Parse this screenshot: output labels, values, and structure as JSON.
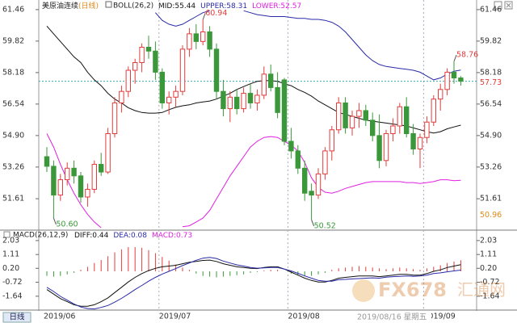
{
  "chart_data": [
    {
      "type": "candlestick",
      "title": "美原油连续",
      "period": "(日线)",
      "indicator": "BOLL(26,2)",
      "categories": [
        "2019/06",
        null,
        null,
        null,
        null,
        null,
        null,
        null,
        null,
        null,
        null,
        null,
        null,
        null,
        null,
        null,
        null,
        "2019/07",
        null,
        null,
        null,
        null,
        null,
        null,
        null,
        null,
        null,
        null,
        null,
        null,
        null,
        null,
        null,
        null,
        null,
        null,
        "2019/08",
        null,
        null,
        null,
        null,
        null,
        null,
        null,
        null,
        null,
        null,
        null,
        null,
        null,
        null,
        null,
        null,
        null,
        null,
        null,
        "2019/09",
        null,
        null,
        null,
        null,
        null
      ],
      "open": [
        53.8,
        53.3,
        51.8,
        52.6,
        53.2,
        52.8,
        51.7,
        52.1,
        53.4,
        53.0,
        55.0,
        56.6,
        57.2,
        58.3,
        58.7,
        59.5,
        59.3,
        58.2,
        56.6,
        56.9,
        57.2,
        59.4,
        60.2,
        59.8,
        60.3,
        59.4,
        57.2,
        56.3,
        56.9,
        56.3,
        57.1,
        56.6,
        57.0,
        58.1,
        57.4,
        57.8,
        54.6,
        54.1,
        53.2,
        52.0,
        51.8,
        52.9,
        54.1,
        55.2,
        56.6,
        55.3,
        55.9,
        56.2,
        55.7,
        54.9,
        53.6,
        55.0,
        55.4,
        56.4,
        55.0,
        54.2,
        54.8,
        55.6,
        56.8,
        57.3,
        58.2,
        57.9
      ],
      "high": [
        54.3,
        53.6,
        52.9,
        53.5,
        53.6,
        53.0,
        52.4,
        53.6,
        54.0,
        55.3,
        56.9,
        57.5,
        58.5,
        58.9,
        59.7,
        60.1,
        59.8,
        58.4,
        57.2,
        57.5,
        59.6,
        60.5,
        60.7,
        60.94,
        60.6,
        59.7,
        57.8,
        57.2,
        57.3,
        57.4,
        57.6,
        57.3,
        58.5,
        58.6,
        58.2,
        57.9,
        55.3,
        54.4,
        53.6,
        52.4,
        53.2,
        54.3,
        55.4,
        56.9,
        56.9,
        56.2,
        56.6,
        56.5,
        56.1,
        56.0,
        55.2,
        55.8,
        56.6,
        56.9,
        55.5,
        55.0,
        55.9,
        57.0,
        57.6,
        58.4,
        58.76,
        58.0
      ],
      "low": [
        53.0,
        50.6,
        51.5,
        52.3,
        52.4,
        51.4,
        51.2,
        51.9,
        52.8,
        52.9,
        54.8,
        56.1,
        56.9,
        57.6,
        58.2,
        58.9,
        57.8,
        56.3,
        56.0,
        56.4,
        57.0,
        59.0,
        59.4,
        59.6,
        59.0,
        56.8,
        55.9,
        55.6,
        56.0,
        56.1,
        56.3,
        56.2,
        56.8,
        57.2,
        55.8,
        54.4,
        53.7,
        52.9,
        51.5,
        50.52,
        51.6,
        52.6,
        53.6,
        55.0,
        55.0,
        54.9,
        55.3,
        55.4,
        54.6,
        53.2,
        53.3,
        54.6,
        55.0,
        54.8,
        53.9,
        53.2,
        54.5,
        55.4,
        56.2,
        57.0,
        57.6,
        57.5
      ],
      "close": [
        53.3,
        51.8,
        52.6,
        53.2,
        52.8,
        51.7,
        52.1,
        53.4,
        53.0,
        55.0,
        56.6,
        57.2,
        58.3,
        58.7,
        59.5,
        59.3,
        58.2,
        56.6,
        56.9,
        57.2,
        59.4,
        60.2,
        59.8,
        60.3,
        59.4,
        57.2,
        56.3,
        56.9,
        56.3,
        57.1,
        56.6,
        57.0,
        58.1,
        57.4,
        56.1,
        54.6,
        54.1,
        53.2,
        51.9,
        51.8,
        52.9,
        54.1,
        55.2,
        56.6,
        55.3,
        55.9,
        56.2,
        55.7,
        54.9,
        53.6,
        55.0,
        55.4,
        56.4,
        55.0,
        54.2,
        54.8,
        55.6,
        56.8,
        57.3,
        58.2,
        57.9,
        57.73
      ],
      "series": [
        {
          "name": "MID:55.44",
          "color": "#111111",
          "values": [
            60.6,
            60.2,
            59.8,
            59.4,
            59.0,
            58.7,
            58.2,
            57.8,
            57.5,
            57.1,
            56.8,
            56.6,
            56.35,
            56.2,
            56.1,
            56.07,
            56.07,
            56.1,
            56.25,
            56.37,
            56.45,
            56.5,
            56.6,
            56.65,
            56.7,
            56.8,
            56.95,
            57.1,
            57.3,
            57.45,
            57.6,
            57.72,
            57.76,
            57.76,
            57.72,
            57.6,
            57.5,
            57.3,
            57.15,
            56.95,
            56.7,
            56.5,
            56.3,
            56.1,
            56.0,
            55.9,
            55.8,
            55.7,
            55.65,
            55.6,
            55.55,
            55.5,
            55.45,
            55.4,
            55.3,
            55.2,
            55.1,
            55.03,
            55.1,
            55.25,
            55.35,
            55.44
          ]
        },
        {
          "name": "UPPER:58.31",
          "color": "#2a2aa8",
          "values": [
            null,
            null,
            null,
            null,
            null,
            null,
            null,
            null,
            null,
            null,
            null,
            null,
            null,
            null,
            null,
            null,
            61.3,
            60.9,
            60.7,
            60.6,
            60.7,
            60.9,
            61.1,
            61.3,
            61.4,
            null,
            null,
            null,
            null,
            61.4,
            61.3,
            61.2,
            61.15,
            61.1,
            61.1,
            61.1,
            61.05,
            61.0,
            61.0,
            60.95,
            60.95,
            60.9,
            60.8,
            60.6,
            60.3,
            59.9,
            59.5,
            59.1,
            58.8,
            58.6,
            58.5,
            58.45,
            58.4,
            58.35,
            58.3,
            58.2,
            58.0,
            57.8,
            57.9,
            58.1,
            58.25,
            58.31
          ]
        },
        {
          "name": "LOWER:52.57",
          "color": "#e020e0",
          "values": [
            55.0,
            54.3,
            53.4,
            52.6,
            51.9,
            51.3,
            50.8,
            50.4,
            50.1,
            null,
            null,
            null,
            null,
            null,
            null,
            null,
            null,
            null,
            null,
            null,
            50.15,
            50.2,
            50.4,
            50.6,
            51.0,
            51.6,
            52.2,
            52.8,
            53.3,
            53.8,
            54.3,
            54.6,
            54.8,
            54.85,
            54.8,
            54.6,
            54.4,
            54.1,
            53.5,
            52.7,
            52.2,
            51.95,
            51.9,
            52.0,
            52.15,
            52.25,
            52.35,
            52.45,
            52.5,
            52.5,
            52.5,
            52.5,
            52.5,
            52.45,
            52.45,
            52.4,
            52.45,
            52.5,
            52.6,
            52.6,
            52.55,
            52.57
          ]
        }
      ],
      "up_color": "#e23c3c",
      "down_color": "#3a983a",
      "ylim": [
        50.1,
        61.75
      ],
      "yticks": [
        61.46,
        59.82,
        58.18,
        56.54,
        {
          "value": 54.9,
          "label": "54.90"
        },
        53.26,
        51.61
      ],
      "last_price": {
        "value": 57.73,
        "label": "57.73",
        "color": "#e23c3c"
      },
      "side_marker": {
        "value": 50.96,
        "label": "50.96",
        "color": "#e08a1a"
      },
      "annotations": [
        {
          "value": 60.94,
          "label": "60.94"
        },
        {
          "value": 58.76,
          "label": "58.76"
        },
        {
          "value": 50.6,
          "label": "50.60"
        },
        {
          "value": 50.52,
          "label": "50.52"
        }
      ],
      "grid": true
    },
    {
      "type": "macd",
      "title": "MACD(26,12,9)",
      "series": [
        {
          "name": "DIFF:0.44",
          "color": "#111111",
          "values": [
            -1.2,
            -1.5,
            -1.8,
            -2.0,
            -2.2,
            -2.3,
            -2.3,
            -2.2,
            -2.0,
            -1.75,
            -1.4,
            -1.05,
            -0.7,
            -0.4,
            -0.15,
            0.05,
            0.2,
            0.3,
            0.35,
            0.4,
            0.5,
            0.6,
            0.65,
            0.72,
            0.74,
            0.65,
            0.5,
            0.4,
            0.3,
            0.25,
            0.2,
            0.18,
            0.25,
            0.3,
            0.3,
            0.15,
            -0.05,
            -0.25,
            -0.45,
            -0.6,
            -0.7,
            -0.7,
            -0.6,
            -0.45,
            -0.4,
            -0.35,
            -0.3,
            -0.3,
            -0.3,
            -0.35,
            -0.3,
            -0.25,
            -0.2,
            -0.2,
            -0.25,
            -0.25,
            -0.15,
            0.0,
            0.1,
            0.25,
            0.35,
            0.44
          ]
        },
        {
          "name": "DEA:0.08",
          "color": "#2a2aa8",
          "values": [
            -1.05,
            -1.33,
            -1.65,
            -1.9,
            -2.15,
            -2.35,
            -2.45,
            -2.48,
            -2.38,
            -2.25,
            -2.03,
            -1.78,
            -1.5,
            -1.2,
            -0.93,
            -0.65,
            -0.4,
            -0.18,
            0.0,
            0.18,
            0.38,
            0.55,
            0.73,
            0.87,
            0.92,
            0.85,
            0.68,
            0.55,
            0.43,
            0.35,
            0.25,
            0.21,
            0.23,
            0.25,
            0.25,
            0.15,
            0.03,
            -0.13,
            -0.3,
            -0.45,
            -0.6,
            -0.65,
            -0.65,
            -0.55,
            -0.53,
            -0.5,
            -0.48,
            -0.45,
            -0.43,
            -0.45,
            -0.38,
            -0.35,
            -0.33,
            -0.3,
            -0.33,
            -0.3,
            -0.25,
            -0.15,
            -0.1,
            -0.03,
            0.03,
            0.08
          ]
        },
        {
          "name": "MACD:0.73",
          "color": "#e020e0",
          "values": [
            -0.3,
            -0.35,
            -0.3,
            -0.2,
            -0.1,
            0.1,
            0.3,
            0.55,
            0.75,
            1.0,
            1.25,
            1.45,
            1.6,
            1.6,
            1.55,
            1.4,
            1.2,
            0.95,
            0.7,
            0.45,
            0.25,
            0.1,
            -0.15,
            -0.3,
            -0.35,
            -0.4,
            -0.35,
            -0.3,
            -0.25,
            -0.2,
            -0.1,
            -0.05,
            0.05,
            0.1,
            0.1,
            0.0,
            -0.15,
            -0.25,
            -0.3,
            -0.3,
            -0.2,
            -0.1,
            0.1,
            0.2,
            0.25,
            0.3,
            0.35,
            0.3,
            0.25,
            0.2,
            0.15,
            0.2,
            0.25,
            0.2,
            0.15,
            0.1,
            0.2,
            0.3,
            0.4,
            0.55,
            0.65,
            0.73
          ]
        }
      ],
      "ylim": [
        -2.5,
        2.45
      ],
      "yticks": [
        2.03,
        1.11,
        {
          "value": 0.2,
          "label": "0.20"
        },
        -0.72,
        -1.64
      ]
    }
  ],
  "footer": {
    "period": "日线",
    "cursor_date": "2019/08/16 星期五"
  },
  "watermark": {
    "brand": "FX678",
    "site": "汇通网"
  }
}
